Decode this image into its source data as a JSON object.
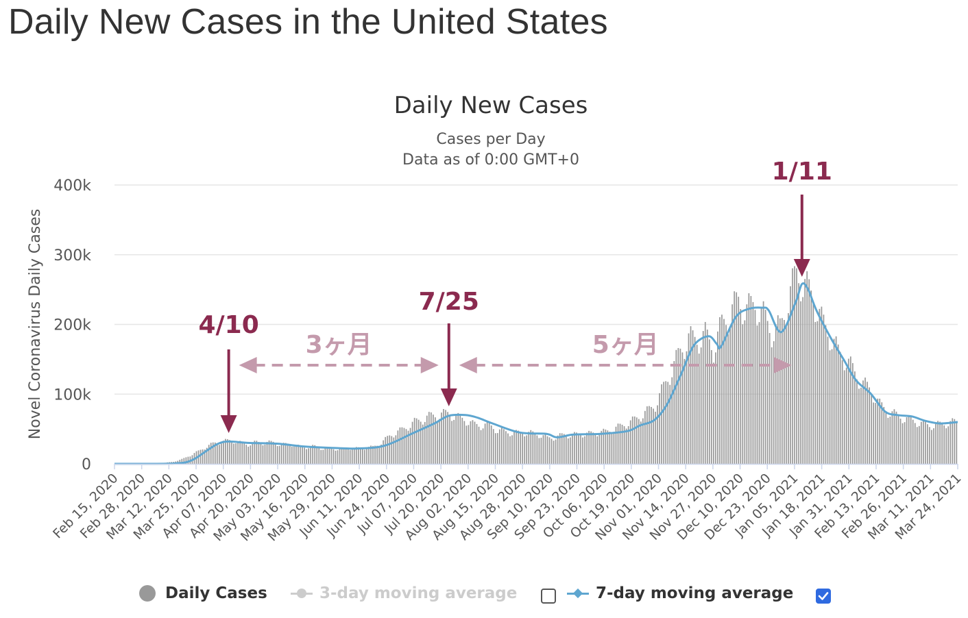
{
  "page": {
    "title": "Daily New Cases in the United States"
  },
  "chart_data": {
    "type": "bar",
    "title": "Daily New Cases",
    "subtitle_lines": [
      "Cases per Day",
      "Data as of 0:00 GMT+0"
    ],
    "ylabel": "Novel Coronavirus Daily Cases",
    "xlabel": "",
    "ylim": [
      0,
      400000
    ],
    "y_ticks": [
      0,
      100000,
      200000,
      300000,
      400000
    ],
    "y_tick_labels": [
      "0",
      "100k",
      "200k",
      "300k",
      "400k"
    ],
    "x_start": "2020-02-15",
    "x_end": "2021-03-27",
    "x_tick_labels": [
      "Feb 15, 2020",
      "Feb 28, 2020",
      "Mar 12, 2020",
      "Mar 25, 2020",
      "Apr 07, 2020",
      "Apr 20, 2020",
      "May 03, 2020",
      "May 16, 2020",
      "May 29, 2020",
      "Jun 11, 2020",
      "Jun 24, 2020",
      "Jul 07, 2020",
      "Jul 20, 2020",
      "Aug 02, 2020",
      "Aug 15, 2020",
      "Aug 28, 2020",
      "Sep 10, 2020",
      "Sep 23, 2020",
      "Oct 06, 2020",
      "Oct 19, 2020",
      "Nov 01, 2020",
      "Nov 14, 2020",
      "Nov 27, 2020",
      "Dec 10, 2020",
      "Dec 23, 2020",
      "Jan 05, 2021",
      "Jan 18, 2021",
      "Jan 31, 2021",
      "Feb 13, 2021",
      "Feb 26, 2021",
      "Mar 11, 2021",
      "Mar 24, 2021"
    ],
    "grid": true,
    "series": [
      {
        "name": "Daily Cases",
        "type": "bar",
        "color": "#999999",
        "x": [
          "2020-02-15",
          "2020-02-19",
          "2020-02-23",
          "2020-02-27",
          "2020-03-02",
          "2020-03-06",
          "2020-03-10",
          "2020-03-14",
          "2020-03-18",
          "2020-03-22",
          "2020-03-26",
          "2020-03-30",
          "2020-04-03",
          "2020-04-07",
          "2020-04-11",
          "2020-04-15",
          "2020-04-19",
          "2020-04-23",
          "2020-04-27",
          "2020-05-01",
          "2020-05-05",
          "2020-05-09",
          "2020-05-13",
          "2020-05-17",
          "2020-05-21",
          "2020-05-25",
          "2020-05-29",
          "2020-06-02",
          "2020-06-06",
          "2020-06-10",
          "2020-06-14",
          "2020-06-18",
          "2020-06-22",
          "2020-06-26",
          "2020-06-30",
          "2020-07-04",
          "2020-07-08",
          "2020-07-12",
          "2020-07-16",
          "2020-07-20",
          "2020-07-24",
          "2020-07-28",
          "2020-08-01",
          "2020-08-05",
          "2020-08-09",
          "2020-08-13",
          "2020-08-17",
          "2020-08-21",
          "2020-08-25",
          "2020-08-29",
          "2020-09-02",
          "2020-09-06",
          "2020-09-10",
          "2020-09-14",
          "2020-09-18",
          "2020-09-22",
          "2020-09-26",
          "2020-09-30",
          "2020-10-04",
          "2020-10-08",
          "2020-10-12",
          "2020-10-16",
          "2020-10-20",
          "2020-10-24",
          "2020-10-28",
          "2020-11-01",
          "2020-11-05",
          "2020-11-09",
          "2020-11-13",
          "2020-11-17",
          "2020-11-21",
          "2020-11-25",
          "2020-11-29",
          "2020-12-03",
          "2020-12-07",
          "2020-12-11",
          "2020-12-15",
          "2020-12-19",
          "2020-12-23",
          "2020-12-27",
          "2020-12-31",
          "2021-01-04",
          "2021-01-08",
          "2021-01-12",
          "2021-01-16",
          "2021-01-20",
          "2021-01-24",
          "2021-01-28",
          "2021-02-01",
          "2021-02-05",
          "2021-02-09",
          "2021-02-13",
          "2021-02-17",
          "2021-02-21",
          "2021-02-25",
          "2021-03-01",
          "2021-03-05",
          "2021-03-09",
          "2021-03-13",
          "2021-03-17",
          "2021-03-21",
          "2021-03-25"
        ],
        "values": [
          0,
          0,
          0,
          0,
          100,
          500,
          1500,
          3000,
          6500,
          12000,
          18000,
          25000,
          30000,
          32000,
          34000,
          30000,
          28000,
          31000,
          30000,
          31000,
          27000,
          29000,
          25000,
          24000,
          25000,
          22000,
          22000,
          21000,
          23000,
          22000,
          23000,
          24000,
          30000,
          40000,
          46000,
          52000,
          60000,
          64000,
          69000,
          70000,
          73000,
          67000,
          64000,
          57000,
          55000,
          56000,
          48000,
          46000,
          44000,
          45000,
          44000,
          42000,
          37000,
          38000,
          42000,
          41000,
          43000,
          43000,
          45000,
          46000,
          50000,
          55000,
          60000,
          67000,
          75000,
          85000,
          110000,
          135000,
          162000,
          180000,
          178000,
          185000,
          165000,
          200000,
          215000,
          235000,
          220000,
          230000,
          212000,
          190000,
          195000,
          235000,
          275000,
          255000,
          240000,
          205000,
          185000,
          160000,
          150000,
          130000,
          115000,
          105000,
          85000,
          75000,
          70000,
          65000,
          62000,
          58000,
          55000,
          56000,
          58000,
          60000
        ]
      },
      {
        "name": "3-day moving average",
        "type": "line",
        "color": "#cccccc",
        "visible": false
      },
      {
        "name": "7-day moving average",
        "type": "line",
        "color": "#5ea6d0",
        "x": [
          "2020-02-15",
          "2020-02-28",
          "2020-03-12",
          "2020-03-20",
          "2020-03-25",
          "2020-03-31",
          "2020-04-05",
          "2020-04-10",
          "2020-04-20",
          "2020-05-03",
          "2020-05-16",
          "2020-05-29",
          "2020-06-11",
          "2020-06-24",
          "2020-07-07",
          "2020-07-18",
          "2020-07-25",
          "2020-08-02",
          "2020-08-08",
          "2020-08-15",
          "2020-08-28",
          "2020-09-10",
          "2020-09-15",
          "2020-09-23",
          "2020-10-06",
          "2020-10-19",
          "2020-10-25",
          "2020-11-01",
          "2020-11-07",
          "2020-11-14",
          "2020-11-20",
          "2020-11-27",
          "2020-12-01",
          "2020-12-03",
          "2020-12-10",
          "2020-12-16",
          "2020-12-23",
          "2020-12-26",
          "2021-01-01",
          "2021-01-08",
          "2021-01-11",
          "2021-01-14",
          "2021-01-18",
          "2021-01-25",
          "2021-01-31",
          "2021-02-06",
          "2021-02-13",
          "2021-02-20",
          "2021-02-26",
          "2021-03-05",
          "2021-03-11",
          "2021-03-18",
          "2021-03-24",
          "2021-03-27"
        ],
        "values": [
          0,
          0,
          200,
          2000,
          8000,
          20000,
          29000,
          32000,
          30000,
          29000,
          25000,
          23000,
          22000,
          26000,
          43000,
          58000,
          69000,
          70000,
          66000,
          58000,
          45000,
          43000,
          38000,
          42000,
          43000,
          47000,
          55000,
          63000,
          85000,
          130000,
          170000,
          183000,
          172000,
          168000,
          210000,
          222000,
          224000,
          220000,
          189000,
          232000,
          258000,
          250000,
          220000,
          180000,
          150000,
          120000,
          101000,
          75000,
          70000,
          68000,
          62000,
          58000,
          59000,
          60000
        ]
      }
    ],
    "annotations": [
      {
        "label": "4/10",
        "x": "2020-04-10",
        "color": "#8b2a4f"
      },
      {
        "label": "7/25",
        "x": "2020-07-25",
        "color": "#8b2a4f"
      },
      {
        "label": "1/11",
        "x": "2021-01-11",
        "color": "#8b2a4f"
      }
    ],
    "spans": [
      {
        "label": "3ヶ月",
        "from": "2020-04-10",
        "to": "2020-07-25",
        "color": "#c49aac"
      },
      {
        "label": "5ヶ月",
        "from": "2020-07-25",
        "to": "2021-01-11",
        "color": "#c49aac"
      }
    ]
  },
  "legend": {
    "items": [
      {
        "label": "Daily Cases",
        "color": "#999999",
        "enabled": true
      },
      {
        "label": "3-day moving average",
        "color": "#cccccc",
        "enabled": false,
        "checked": false
      },
      {
        "label": "7-day moving average",
        "color": "#5ea6d0",
        "enabled": true,
        "checked": true
      }
    ]
  },
  "colors": {
    "accent": "#8b2a4f",
    "span": "#c49aac",
    "checkbox": "#2f6ae0",
    "grid": "#e6e6e6"
  }
}
